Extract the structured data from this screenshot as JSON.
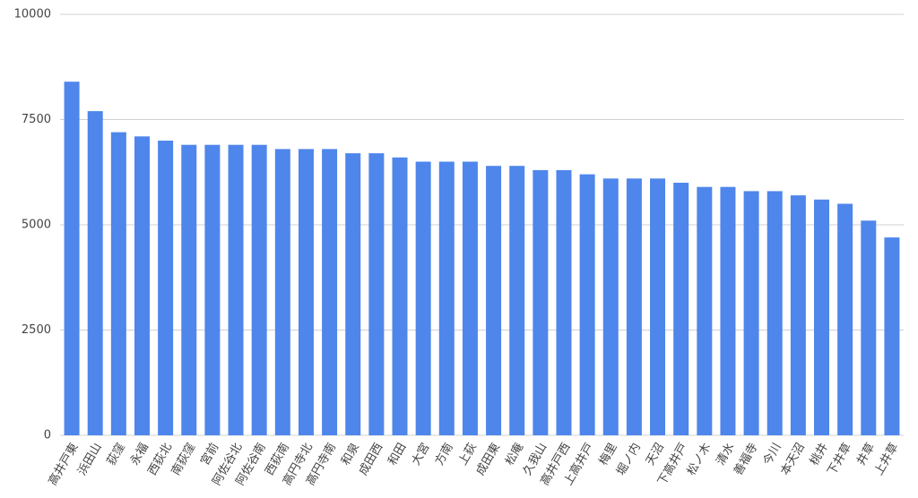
{
  "chart_data": {
    "type": "bar",
    "categories": [
      "高井戸東",
      "浜田山",
      "荻窪",
      "永福",
      "西荻北",
      "南荻窪",
      "宮前",
      "阿佐谷北",
      "阿佐谷南",
      "西荻南",
      "高円寺北",
      "高円寺南",
      "和泉",
      "成田西",
      "和田",
      "大宮",
      "方南",
      "上荻",
      "成田東",
      "松庵",
      "久我山",
      "高井戸西",
      "上高井戸",
      "梅里",
      "堀ノ内",
      "天沼",
      "下高井戸",
      "松ノ木",
      "清水",
      "善福寺",
      "今川",
      "本天沼",
      "桃井",
      "下井草",
      "井草",
      "上井草"
    ],
    "values": [
      8400,
      7700,
      7200,
      7100,
      7000,
      6900,
      6900,
      6900,
      6900,
      6800,
      6800,
      6800,
      6700,
      6700,
      6600,
      6500,
      6500,
      6500,
      6400,
      6400,
      6300,
      6300,
      6200,
      6100,
      6100,
      6100,
      6000,
      5900,
      5900,
      5800,
      5800,
      5700,
      5600,
      5500,
      5100,
      4700
    ],
    "color": "#4f86ec",
    "ylim": [
      0,
      10000
    ],
    "yticks": [
      0,
      2500,
      5000,
      7500,
      10000
    ],
    "grid": true
  }
}
